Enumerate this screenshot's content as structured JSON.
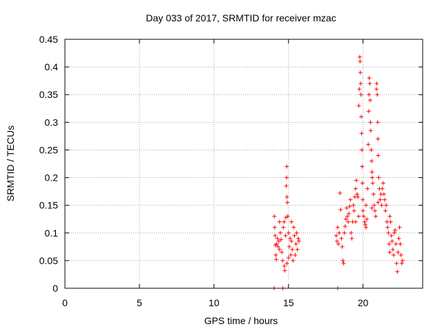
{
  "chart_data": {
    "type": "scatter",
    "title": "Day 033 of 2017, SRMTID for receiver mzac",
    "xlabel": "GPS time / hours",
    "ylabel": "SRMTID / TECUs",
    "xlim": [
      0,
      24
    ],
    "ylim": [
      0,
      0.45
    ],
    "xticks": [
      0,
      5,
      10,
      15,
      20
    ],
    "yticks": [
      "0",
      "0.05",
      "0.1",
      "0.15",
      "0.2",
      "0.25",
      "0.3",
      "0.35",
      "0.4",
      "0.45"
    ],
    "ytick_values": [
      0,
      0.05,
      0.1,
      0.15,
      0.2,
      0.25,
      0.3,
      0.35,
      0.4,
      0.45
    ],
    "grid": true,
    "marker": "+",
    "color": "#ff0000",
    "series": [
      {
        "name": "SRMTID",
        "points": [
          [
            14.03,
            0.0
          ],
          [
            14.62,
            0.0
          ],
          [
            18.3,
            0.0
          ],
          [
            14.05,
            0.13
          ],
          [
            14.08,
            0.11
          ],
          [
            14.1,
            0.095
          ],
          [
            14.12,
            0.078
          ],
          [
            14.15,
            0.06
          ],
          [
            14.18,
            0.052
          ],
          [
            14.2,
            0.08
          ],
          [
            14.25,
            0.09
          ],
          [
            14.3,
            0.075
          ],
          [
            14.35,
            0.085
          ],
          [
            14.4,
            0.07
          ],
          [
            14.45,
            0.1
          ],
          [
            14.5,
            0.088
          ],
          [
            14.55,
            0.065
          ],
          [
            14.6,
            0.05
          ],
          [
            14.65,
            0.11
          ],
          [
            14.7,
            0.12
          ],
          [
            14.72,
            0.04
          ],
          [
            14.75,
            0.032
          ],
          [
            14.8,
            0.095
          ],
          [
            14.82,
            0.128
          ],
          [
            14.85,
            0.185
          ],
          [
            14.87,
            0.2
          ],
          [
            14.88,
            0.22
          ],
          [
            14.9,
            0.165
          ],
          [
            14.92,
            0.155
          ],
          [
            14.95,
            0.13
          ],
          [
            15.0,
            0.1
          ],
          [
            15.05,
            0.075
          ],
          [
            15.1,
            0.09
          ],
          [
            15.15,
            0.06
          ],
          [
            15.2,
            0.085
          ],
          [
            15.25,
            0.07
          ],
          [
            15.3,
            0.05
          ],
          [
            15.35,
            0.11
          ],
          [
            15.4,
            0.095
          ],
          [
            15.45,
            0.06
          ],
          [
            15.5,
            0.08
          ],
          [
            15.55,
            0.1
          ],
          [
            15.6,
            0.07
          ],
          [
            15.65,
            0.09
          ],
          [
            15.7,
            0.085
          ],
          [
            15.2,
            0.12
          ],
          [
            15.0,
            0.055
          ],
          [
            14.4,
            0.12
          ],
          [
            14.9,
            0.045
          ],
          [
            18.2,
            0.095
          ],
          [
            18.25,
            0.085
          ],
          [
            18.3,
            0.11
          ],
          [
            18.35,
            0.08
          ],
          [
            18.4,
            0.1
          ],
          [
            18.45,
            0.172
          ],
          [
            18.5,
            0.142
          ],
          [
            18.55,
            0.09
          ],
          [
            18.6,
            0.075
          ],
          [
            18.65,
            0.05
          ],
          [
            18.7,
            0.045
          ],
          [
            18.75,
            0.1
          ],
          [
            18.8,
            0.112
          ],
          [
            18.85,
            0.125
          ],
          [
            18.9,
            0.145
          ],
          [
            18.95,
            0.13
          ],
          [
            19.0,
            0.12
          ],
          [
            19.05,
            0.135
          ],
          [
            19.1,
            0.148
          ],
          [
            19.15,
            0.16
          ],
          [
            19.2,
            0.1
          ],
          [
            19.25,
            0.09
          ],
          [
            19.3,
            0.12
          ],
          [
            19.35,
            0.15
          ],
          [
            19.4,
            0.14
          ],
          [
            19.45,
            0.165
          ],
          [
            19.5,
            0.18
          ],
          [
            19.55,
            0.195
          ],
          [
            19.6,
            0.17
          ],
          [
            19.65,
            0.165
          ],
          [
            19.7,
            0.13
          ],
          [
            19.72,
            0.33
          ],
          [
            19.75,
            0.36
          ],
          [
            19.78,
            0.418
          ],
          [
            19.8,
            0.41
          ],
          [
            19.82,
            0.39
          ],
          [
            19.84,
            0.37
          ],
          [
            19.86,
            0.35
          ],
          [
            19.88,
            0.31
          ],
          [
            19.9,
            0.28
          ],
          [
            19.92,
            0.25
          ],
          [
            19.94,
            0.22
          ],
          [
            19.96,
            0.19
          ],
          [
            19.98,
            0.16
          ],
          [
            20.0,
            0.14
          ],
          [
            20.05,
            0.13
          ],
          [
            20.1,
            0.12
          ],
          [
            20.15,
            0.115
          ],
          [
            20.2,
            0.15
          ],
          [
            20.25,
            0.125
          ],
          [
            20.3,
            0.18
          ],
          [
            20.35,
            0.26
          ],
          [
            20.38,
            0.32
          ],
          [
            20.4,
            0.35
          ],
          [
            20.42,
            0.38
          ],
          [
            20.45,
            0.37
          ],
          [
            20.48,
            0.34
          ],
          [
            20.5,
            0.3
          ],
          [
            20.52,
            0.285
          ],
          [
            20.55,
            0.25
          ],
          [
            20.58,
            0.23
          ],
          [
            20.6,
            0.21
          ],
          [
            20.62,
            0.2
          ],
          [
            20.65,
            0.19
          ],
          [
            20.7,
            0.17
          ],
          [
            20.75,
            0.15
          ],
          [
            20.8,
            0.14
          ],
          [
            20.85,
            0.13
          ],
          [
            20.9,
            0.36
          ],
          [
            20.92,
            0.37
          ],
          [
            20.95,
            0.35
          ],
          [
            20.98,
            0.3
          ],
          [
            21.0,
            0.27
          ],
          [
            21.02,
            0.24
          ],
          [
            21.05,
            0.2
          ],
          [
            21.1,
            0.18
          ],
          [
            21.15,
            0.16
          ],
          [
            21.2,
            0.17
          ],
          [
            21.25,
            0.15
          ],
          [
            21.3,
            0.18
          ],
          [
            21.35,
            0.19
          ],
          [
            21.4,
            0.17
          ],
          [
            21.45,
            0.16
          ],
          [
            21.5,
            0.14
          ],
          [
            21.55,
            0.15
          ],
          [
            21.6,
            0.12
          ],
          [
            21.65,
            0.11
          ],
          [
            21.7,
            0.1
          ],
          [
            21.75,
            0.08
          ],
          [
            21.8,
            0.065
          ],
          [
            21.85,
            0.12
          ],
          [
            21.9,
            0.095
          ],
          [
            21.95,
            0.085
          ],
          [
            22.0,
            0.07
          ],
          [
            22.05,
            0.06
          ],
          [
            22.1,
            0.1
          ],
          [
            22.15,
            0.105
          ],
          [
            22.2,
            0.08
          ],
          [
            22.25,
            0.045
          ],
          [
            22.3,
            0.03
          ],
          [
            22.35,
            0.065
          ],
          [
            22.4,
            0.09
          ],
          [
            22.45,
            0.11
          ],
          [
            22.5,
            0.08
          ],
          [
            22.55,
            0.06
          ],
          [
            22.6,
            0.045
          ],
          [
            22.65,
            0.05
          ],
          [
            20.2,
            0.11
          ],
          [
            20.6,
            0.145
          ],
          [
            21.0,
            0.155
          ],
          [
            19.5,
            0.12
          ],
          [
            21.8,
            0.13
          ]
        ]
      }
    ]
  }
}
